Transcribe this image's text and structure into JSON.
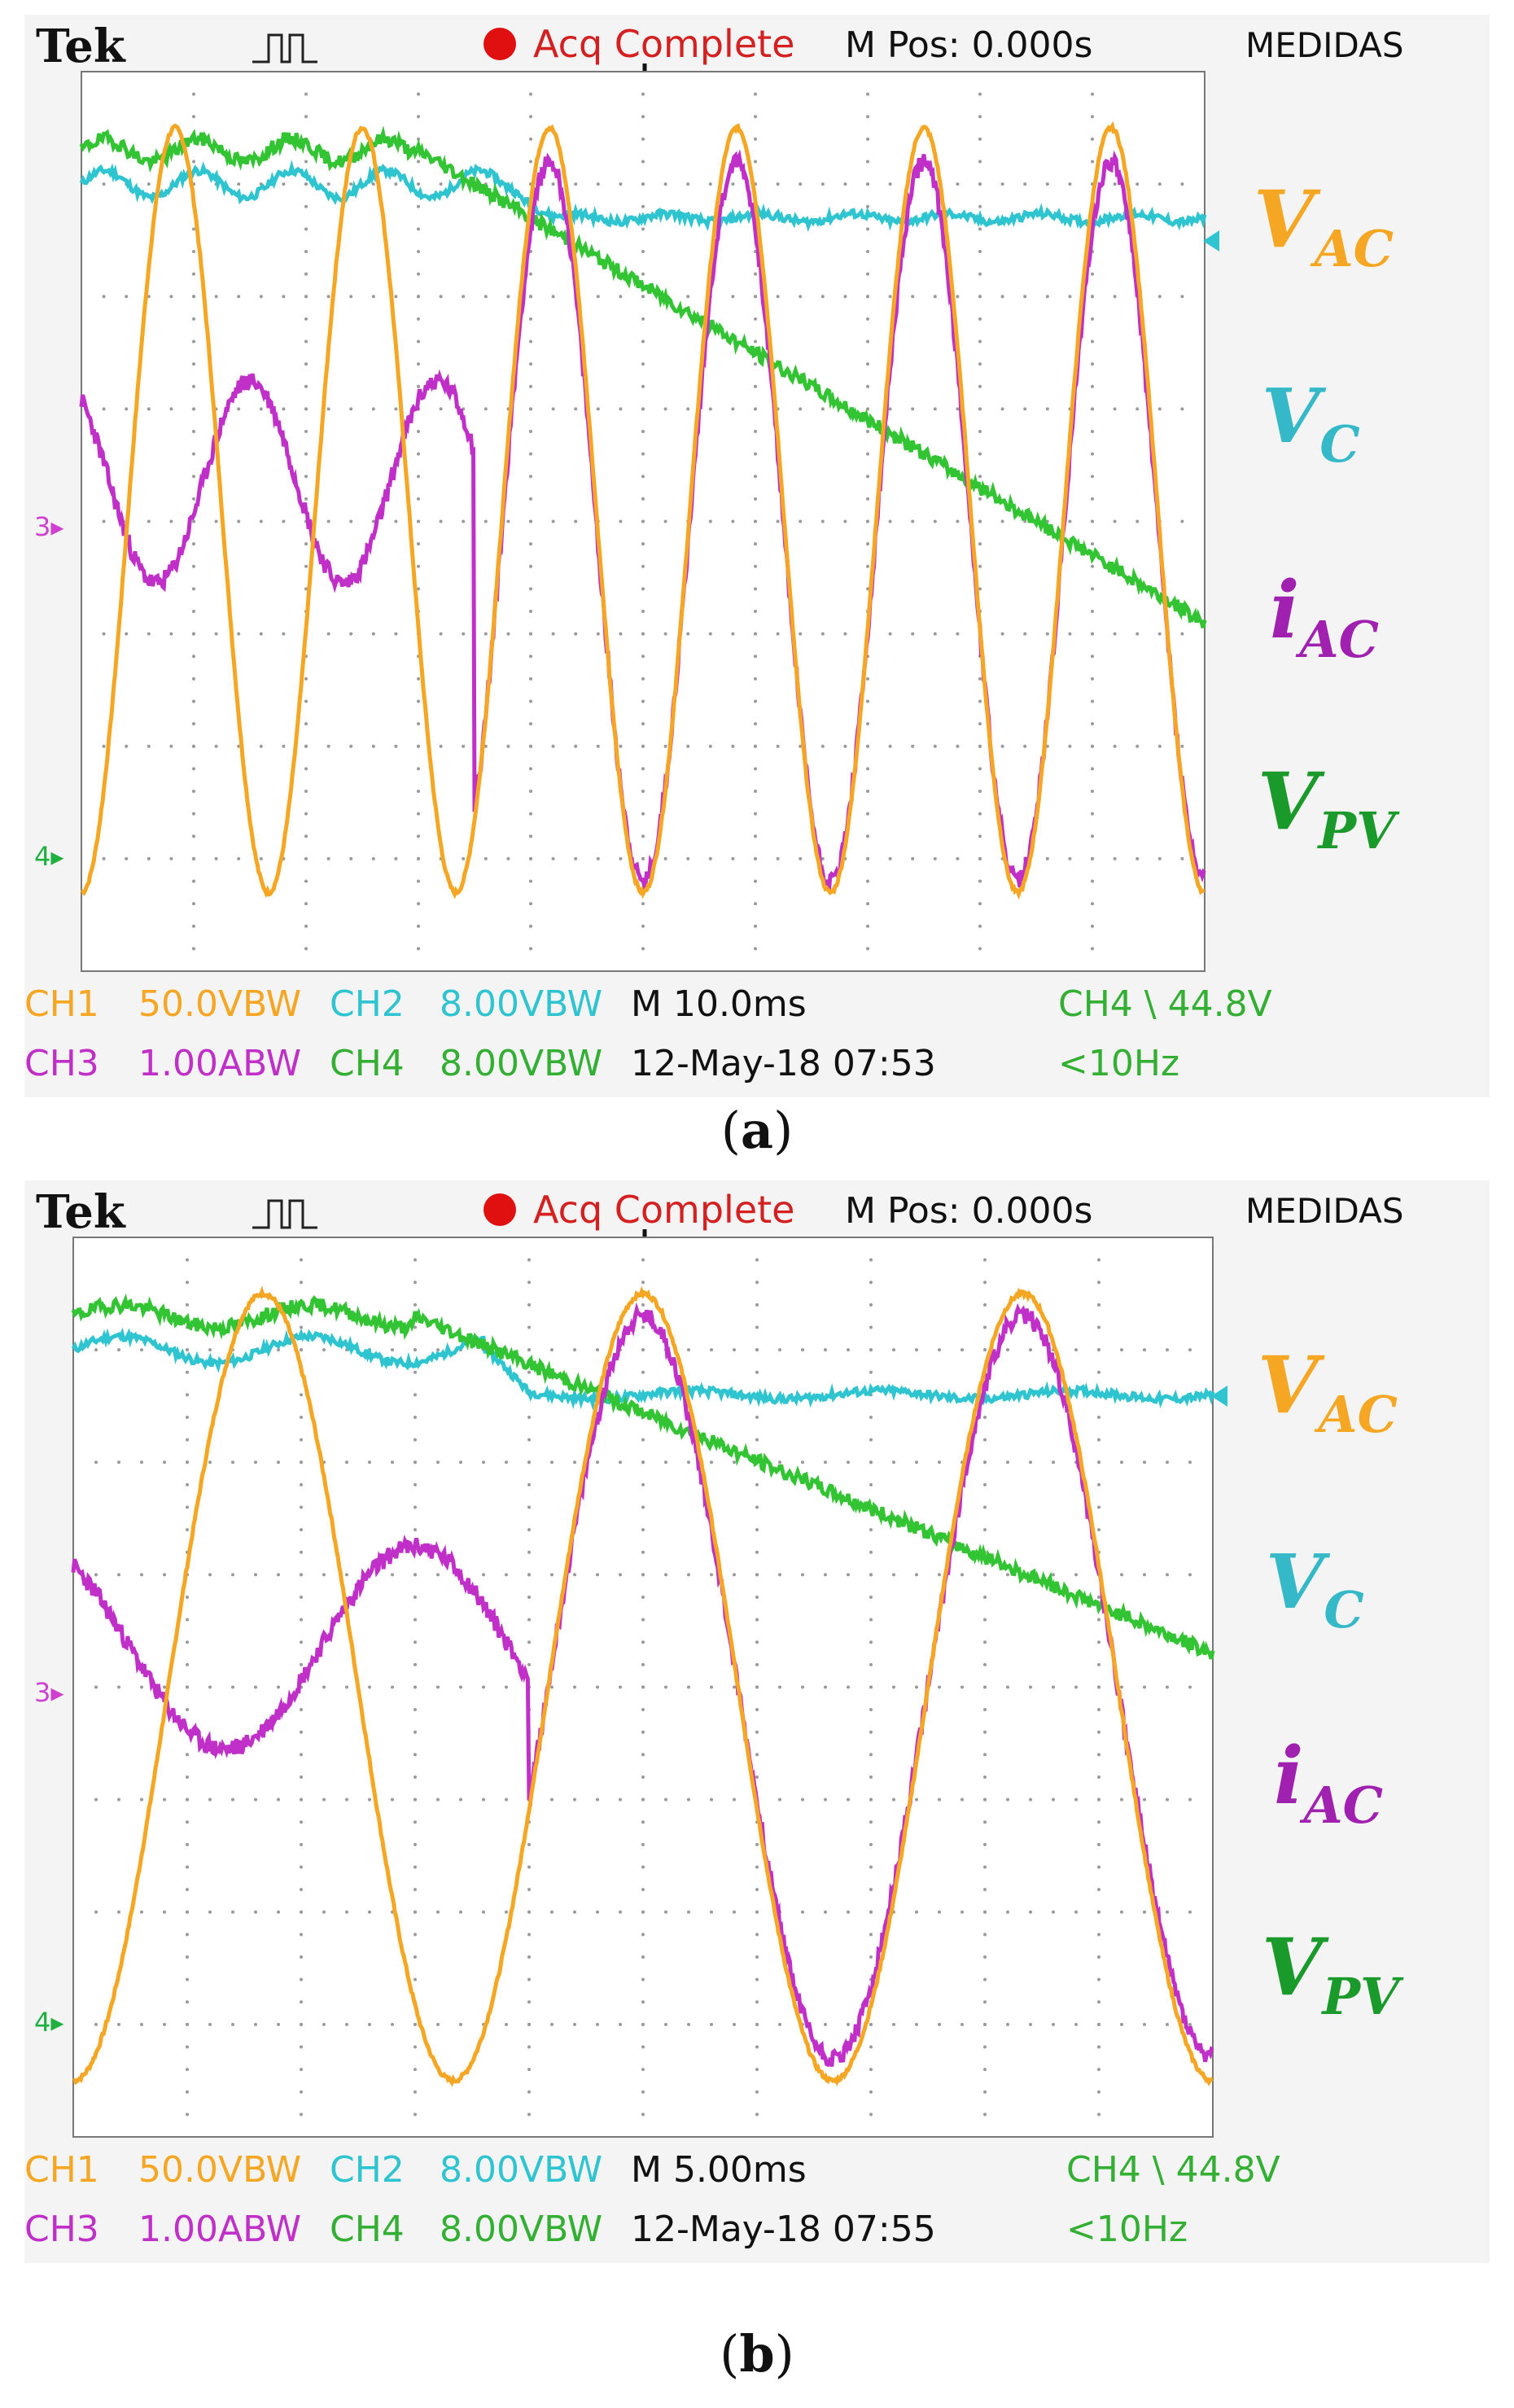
{
  "panels": [
    {
      "id": "a",
      "caption_letter": "a",
      "header": {
        "brand": "Tek",
        "status": "Acq Complete",
        "position": "M Pos: 0.000s",
        "menu": "MEDIDAS"
      },
      "footer": {
        "ch1": "CH1",
        "ch1_scale": "50.0VBW",
        "ch2": "CH2",
        "ch2_scale": "8.00VBW",
        "ch3": "CH3",
        "ch3_scale": "1.00ABW",
        "ch4": "CH4",
        "ch4_scale": "8.00VBW",
        "timebase": "M 10.0ms",
        "date": "12-May-18 07:53",
        "trigger": "CH4 \\ 44.8V",
        "trigger_freq": "<10Hz"
      }
    },
    {
      "id": "b",
      "caption_letter": "b",
      "header": {
        "brand": "Tek",
        "status": "Acq Complete",
        "position": "M Pos: 0.000s",
        "menu": "MEDIDAS"
      },
      "footer": {
        "ch1": "CH1",
        "ch1_scale": "50.0VBW",
        "ch2": "CH2",
        "ch2_scale": "8.00VBW",
        "ch3": "CH3",
        "ch3_scale": "1.00ABW",
        "ch4": "CH4",
        "ch4_scale": "8.00VBW",
        "timebase": "M 5.00ms",
        "date": "12-May-18 07:55",
        "trigger": "CH4 \\ 44.8V",
        "trigger_freq": "<10Hz"
      }
    }
  ],
  "legend": [
    {
      "main": "V",
      "sub": "AC",
      "color": "#f5a623"
    },
    {
      "main": "V",
      "sub": "C",
      "color": "#35b8c8"
    },
    {
      "main": "i",
      "sub": "AC",
      "color": "#a020b0"
    },
    {
      "main": "V",
      "sub": "PV",
      "color": "#1a9a2a"
    }
  ],
  "colors": {
    "ch1": "#f5a623",
    "ch2": "#2ec4d0",
    "ch3": "#c030c8",
    "ch4": "#33c433",
    "grid": "#8a8a8a",
    "status_dot": "#e01010"
  },
  "chart_data": [
    {
      "type": "line",
      "title": "",
      "x_divisions": 10,
      "y_divisions": 8,
      "timebase": "10.0ms/div",
      "series": [
        {
          "name": "V_AC",
          "channel": "CH1",
          "scale": "50.0V/div",
          "kind": "sine",
          "cycles_on_screen": 6,
          "amplitude_div": 3.4,
          "offset_div": 0.1
        },
        {
          "name": "V_C",
          "channel": "CH2",
          "scale": "8.00V/div",
          "kind": "level_with_ripple",
          "level_div": 3.0,
          "step_at_div": 3.8,
          "level_after_div": 2.7
        },
        {
          "name": "i_AC",
          "channel": "CH3",
          "scale": "1.00A/div",
          "kind": "distorted_then_sine",
          "switch_at_div": 3.5,
          "amplitude_after_div": 3.2
        },
        {
          "name": "V_PV",
          "channel": "CH4",
          "scale": "8.00V/div",
          "kind": "level_then_ramp",
          "level_div": 3.3,
          "ramp_start_div": 3.0,
          "end_level_div": -0.9
        }
      ]
    },
    {
      "type": "line",
      "title": "",
      "x_divisions": 10,
      "y_divisions": 8,
      "timebase": "5.00ms/div",
      "series": [
        {
          "name": "V_AC",
          "channel": "CH1",
          "scale": "50.0V/div",
          "kind": "sine",
          "cycles_on_screen": 3,
          "amplitude_div": 3.5,
          "offset_div": 0.0
        },
        {
          "name": "V_C",
          "channel": "CH2",
          "scale": "8.00V/div",
          "kind": "level_with_ripple",
          "level_div": 3.0,
          "step_at_div": 3.6,
          "level_after_div": 2.6
        },
        {
          "name": "i_AC",
          "channel": "CH3",
          "scale": "1.00A/div",
          "kind": "distorted_then_sine",
          "switch_at_div": 4.0,
          "amplitude_after_div": 3.3
        },
        {
          "name": "V_PV",
          "channel": "CH4",
          "scale": "8.00V/div",
          "kind": "level_then_ramp",
          "level_div": 3.3,
          "ramp_start_div": 3.0,
          "end_level_div": 0.3
        }
      ]
    }
  ]
}
